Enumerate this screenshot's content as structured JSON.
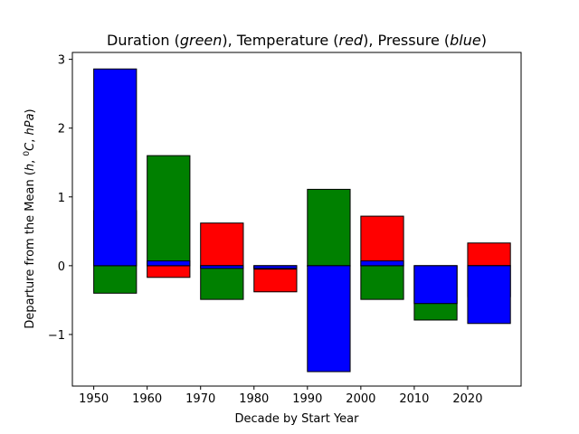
{
  "chart_data": {
    "type": "bar",
    "title": {
      "p1": "Duration (",
      "g": "green",
      "p2": "),  Temperature (",
      "r": "red",
      "p3": "),  Pressure (",
      "b": "blue",
      "p4": ")"
    },
    "xlabel": "Decade by Start Year",
    "ylabel": {
      "prefix": "Departure from the Mean (",
      "h": "h",
      "sep1": ", ",
      "deg": "0",
      "c": "C",
      "sep2": ", ",
      "hpa": "hPa",
      "suffix": ")"
    },
    "xlim": [
      1946,
      2030
    ],
    "ylim": [
      -1.75,
      3.1
    ],
    "categories": [
      1950,
      1960,
      1970,
      1980,
      1990,
      2000,
      2010,
      2020
    ],
    "x_ticks": [
      "1950",
      "1960",
      "1970",
      "1980",
      "1990",
      "2000",
      "2010",
      "2020"
    ],
    "y_ticks": [
      {
        "value": -1,
        "label": "−1"
      },
      {
        "value": 0,
        "label": "0"
      },
      {
        "value": 1,
        "label": "1"
      },
      {
        "value": 2,
        "label": "2"
      },
      {
        "value": 3,
        "label": "3"
      }
    ],
    "bar_width_years": 8,
    "series": [
      {
        "color": "#ff0000",
        "values": [
          0.8,
          -0.17,
          0.62,
          -0.38,
          0.0,
          0.72,
          -0.55,
          0.33
        ]
      },
      {
        "color": "#008000",
        "values": [
          -0.4,
          1.6,
          -0.49,
          -0.05,
          1.11,
          -0.49,
          -0.79,
          -0.45
        ]
      },
      {
        "color": "#0000ff",
        "values": [
          2.86,
          0.07,
          -0.04,
          -0.04,
          -1.54,
          0.07,
          -0.55,
          -0.84
        ]
      }
    ]
  }
}
